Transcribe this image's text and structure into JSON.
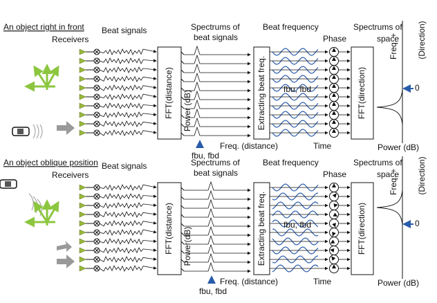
{
  "panels": [
    {
      "title": "An object right in front",
      "receivers": "Receivers",
      "beat_signals": "Beat signals",
      "fft_distance": "FFT(distance)",
      "spectrums_title": [
        "Spectrums of",
        "beat signals"
      ],
      "power_axis": "Power (dB)",
      "fbu_fbd_marker": "fbu, fbd",
      "freq_distance": "Freq. (distance)",
      "extracting": "Extracting beat freq.",
      "beat_frequency": "Beat frequency",
      "fbu_fbd_wave": "fbu, fbd",
      "time": "Time",
      "phase": "Phase",
      "spectrums_of": "Spectrums of",
      "space": "space",
      "fft_direction": "FFT(direction)",
      "freq_plus": "Freq. +",
      "direction": "(Direction)",
      "zero": "0",
      "power_db": "Power (dB)"
    },
    {
      "title": "An object oblique position",
      "receivers": "Receivers",
      "beat_signals": "Beat signals",
      "fft_distance": "FFT(distance)",
      "spectrums_title": [
        "Spectrums of",
        "beat signals"
      ],
      "power_axis": "Power(dB)",
      "fbu_fbd_marker": "fbu, fbd",
      "freq_distance": "Freq. (distance)",
      "extracting": "Extracting beat freq.",
      "beat_frequency": "Beat frequency",
      "fbu_fbd_wave": "fbu, fbd",
      "time": "Time",
      "phase": "Phase",
      "spectrums_of": "Spectrums of",
      "space": "space",
      "fft_direction": "FFT(direction)",
      "freq_plus": "Freq. +",
      "direction": "(Direction)",
      "zero": "0",
      "power_db": "Power (dB)"
    }
  ]
}
